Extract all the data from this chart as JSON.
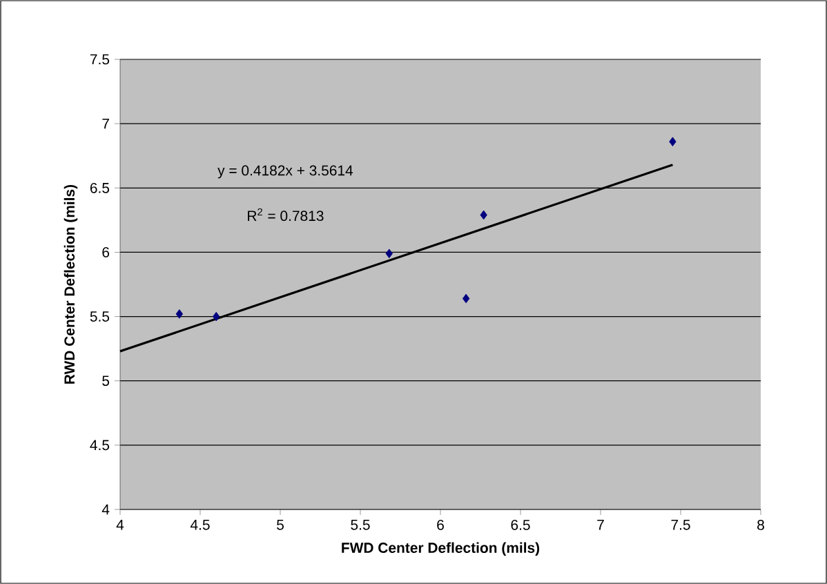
{
  "chart_data": {
    "type": "scatter",
    "xlabel": "FWD Center Deflection (mils)",
    "ylabel": "RWD Center Deflection (mils)",
    "x": [
      4.37,
      4.6,
      5.68,
      6.16,
      6.27,
      7.45
    ],
    "series": [
      {
        "color": "#000080",
        "marker": "diamond",
        "values": [
          5.52,
          5.5,
          5.99,
          5.64,
          6.29,
          6.86
        ]
      },
      {
        "type": "line",
        "color": "#000000",
        "marker": "none",
        "x": [
          4,
          7.45
        ],
        "values": [
          5.23,
          6.68
        ]
      }
    ],
    "annotations": [
      "y = 0.4182x + 3.5614",
      "R$^{2}$ = 0.7813"
    ],
    "xlim": [
      4,
      8
    ],
    "ylim": [
      4,
      7.5
    ],
    "xticks": [
      4,
      4.5,
      5,
      5.5,
      6,
      6.5,
      7,
      7.5,
      8
    ],
    "yticks": [
      4,
      4.5,
      5,
      5.5,
      6,
      6.5,
      7,
      7.5
    ],
    "grid": "y"
  }
}
